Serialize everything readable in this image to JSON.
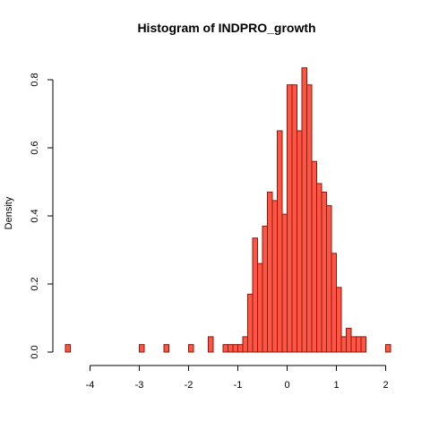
{
  "chart_data": {
    "type": "bar",
    "title": "Histogram of INDPRO_growth",
    "xlabel": "",
    "ylabel": "Density",
    "xlim": [
      -4.6,
      2.2
    ],
    "ylim": [
      0,
      0.84
    ],
    "bin_width": 0.1,
    "bar_fill": "#ff5544",
    "bar_stroke": "#8b1a0e",
    "x_ticks": [
      -4,
      -3,
      -2,
      -1,
      0,
      1,
      2
    ],
    "x_tick_labels": [
      "-4",
      "-3",
      "-2",
      "-1",
      "0",
      "1",
      "2"
    ],
    "y_ticks": [
      0,
      0.2,
      0.4,
      0.6,
      0.8
    ],
    "y_tick_labels": [
      "0.0",
      "0.2",
      "0.4",
      "0.6",
      "0.8"
    ],
    "bins": [
      {
        "left": -4.5,
        "density": 0.022
      },
      {
        "left": -3.0,
        "density": 0.022
      },
      {
        "left": -2.5,
        "density": 0.022
      },
      {
        "left": -2.0,
        "density": 0.022
      },
      {
        "left": -1.6,
        "density": 0.045
      },
      {
        "left": -1.3,
        "density": 0.022
      },
      {
        "left": -1.2,
        "density": 0.022
      },
      {
        "left": -1.1,
        "density": 0.022
      },
      {
        "left": -1.0,
        "density": 0.022
      },
      {
        "left": -0.9,
        "density": 0.045
      },
      {
        "left": -0.8,
        "density": 0.17
      },
      {
        "left": -0.7,
        "density": 0.335
      },
      {
        "left": -0.6,
        "density": 0.26
      },
      {
        "left": -0.5,
        "density": 0.37
      },
      {
        "left": -0.4,
        "density": 0.47
      },
      {
        "left": -0.3,
        "density": 0.445
      },
      {
        "left": -0.2,
        "density": 0.65
      },
      {
        "left": -0.1,
        "density": 0.405
      },
      {
        "left": 0.0,
        "density": 0.785
      },
      {
        "left": 0.1,
        "density": 0.785
      },
      {
        "left": 0.2,
        "density": 0.65
      },
      {
        "left": 0.3,
        "density": 0.835
      },
      {
        "left": 0.4,
        "density": 0.785
      },
      {
        "left": 0.5,
        "density": 0.56
      },
      {
        "left": 0.6,
        "density": 0.495
      },
      {
        "left": 0.7,
        "density": 0.47
      },
      {
        "left": 0.8,
        "density": 0.43
      },
      {
        "left": 0.9,
        "density": 0.29
      },
      {
        "left": 1.0,
        "density": 0.19
      },
      {
        "left": 1.1,
        "density": 0.045
      },
      {
        "left": 1.2,
        "density": 0.07
      },
      {
        "left": 1.3,
        "density": 0.045
      },
      {
        "left": 1.4,
        "density": 0.045
      },
      {
        "left": 1.5,
        "density": 0.045
      },
      {
        "left": 2.0,
        "density": 0.022
      }
    ]
  }
}
